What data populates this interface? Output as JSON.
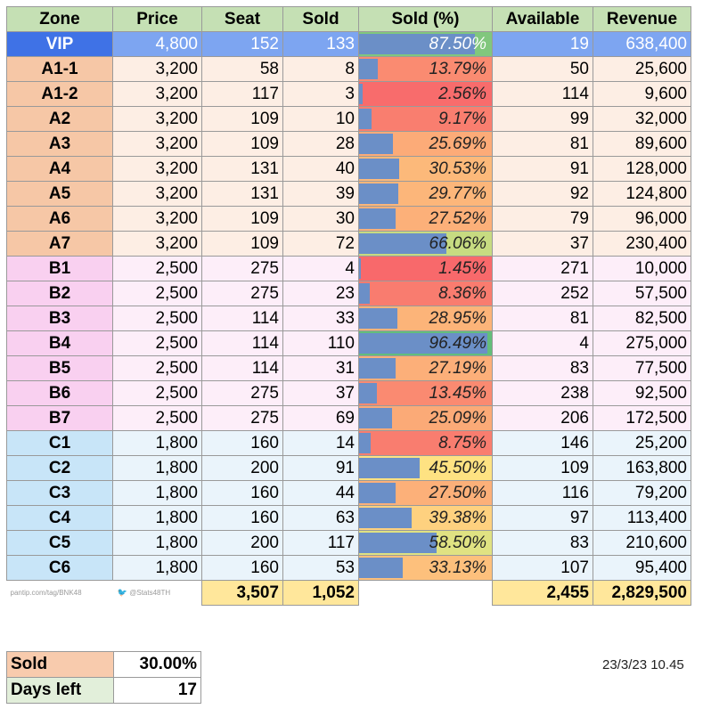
{
  "headers": [
    "Zone",
    "Price",
    "Seat",
    "Sold",
    "Sold (%)",
    "Available",
    "Revenue"
  ],
  "rows": [
    {
      "zone": "VIP",
      "price": "4,800",
      "seat": "152",
      "sold": "133",
      "pct": "87.50%",
      "pct_value": 87.5,
      "available": "19",
      "revenue": "638,400",
      "group": "vip"
    },
    {
      "zone": "A1-1",
      "price": "3,200",
      "seat": "58",
      "sold": "8",
      "pct": "13.79%",
      "pct_value": 13.79,
      "available": "50",
      "revenue": "25,600",
      "group": "A"
    },
    {
      "zone": "A1-2",
      "price": "3,200",
      "seat": "117",
      "sold": "3",
      "pct": "2.56%",
      "pct_value": 2.56,
      "available": "114",
      "revenue": "9,600",
      "group": "A"
    },
    {
      "zone": "A2",
      "price": "3,200",
      "seat": "109",
      "sold": "10",
      "pct": "9.17%",
      "pct_value": 9.17,
      "available": "99",
      "revenue": "32,000",
      "group": "A"
    },
    {
      "zone": "A3",
      "price": "3,200",
      "seat": "109",
      "sold": "28",
      "pct": "25.69%",
      "pct_value": 25.69,
      "available": "81",
      "revenue": "89,600",
      "group": "A"
    },
    {
      "zone": "A4",
      "price": "3,200",
      "seat": "131",
      "sold": "40",
      "pct": "30.53%",
      "pct_value": 30.53,
      "available": "91",
      "revenue": "128,000",
      "group": "A"
    },
    {
      "zone": "A5",
      "price": "3,200",
      "seat": "131",
      "sold": "39",
      "pct": "29.77%",
      "pct_value": 29.77,
      "available": "92",
      "revenue": "124,800",
      "group": "A"
    },
    {
      "zone": "A6",
      "price": "3,200",
      "seat": "109",
      "sold": "30",
      "pct": "27.52%",
      "pct_value": 27.52,
      "available": "79",
      "revenue": "96,000",
      "group": "A"
    },
    {
      "zone": "A7",
      "price": "3,200",
      "seat": "109",
      "sold": "72",
      "pct": "66.06%",
      "pct_value": 66.06,
      "available": "37",
      "revenue": "230,400",
      "group": "A"
    },
    {
      "zone": "B1",
      "price": "2,500",
      "seat": "275",
      "sold": "4",
      "pct": "1.45%",
      "pct_value": 1.45,
      "available": "271",
      "revenue": "10,000",
      "group": "B"
    },
    {
      "zone": "B2",
      "price": "2,500",
      "seat": "275",
      "sold": "23",
      "pct": "8.36%",
      "pct_value": 8.36,
      "available": "252",
      "revenue": "57,500",
      "group": "B"
    },
    {
      "zone": "B3",
      "price": "2,500",
      "seat": "114",
      "sold": "33",
      "pct": "28.95%",
      "pct_value": 28.95,
      "available": "81",
      "revenue": "82,500",
      "group": "B"
    },
    {
      "zone": "B4",
      "price": "2,500",
      "seat": "114",
      "sold": "110",
      "pct": "96.49%",
      "pct_value": 96.49,
      "available": "4",
      "revenue": "275,000",
      "group": "B"
    },
    {
      "zone": "B5",
      "price": "2,500",
      "seat": "114",
      "sold": "31",
      "pct": "27.19%",
      "pct_value": 27.19,
      "available": "83",
      "revenue": "77,500",
      "group": "B"
    },
    {
      "zone": "B6",
      "price": "2,500",
      "seat": "275",
      "sold": "37",
      "pct": "13.45%",
      "pct_value": 13.45,
      "available": "238",
      "revenue": "92,500",
      "group": "B"
    },
    {
      "zone": "B7",
      "price": "2,500",
      "seat": "275",
      "sold": "69",
      "pct": "25.09%",
      "pct_value": 25.09,
      "available": "206",
      "revenue": "172,500",
      "group": "B"
    },
    {
      "zone": "C1",
      "price": "1,800",
      "seat": "160",
      "sold": "14",
      "pct": "8.75%",
      "pct_value": 8.75,
      "available": "146",
      "revenue": "25,200",
      "group": "C"
    },
    {
      "zone": "C2",
      "price": "1,800",
      "seat": "200",
      "sold": "91",
      "pct": "45.50%",
      "pct_value": 45.5,
      "available": "109",
      "revenue": "163,800",
      "group": "C"
    },
    {
      "zone": "C3",
      "price": "1,800",
      "seat": "160",
      "sold": "44",
      "pct": "27.50%",
      "pct_value": 27.5,
      "available": "116",
      "revenue": "79,200",
      "group": "C"
    },
    {
      "zone": "C4",
      "price": "1,800",
      "seat": "160",
      "sold": "63",
      "pct": "39.38%",
      "pct_value": 39.38,
      "available": "97",
      "revenue": "113,400",
      "group": "C"
    },
    {
      "zone": "C5",
      "price": "1,800",
      "seat": "200",
      "sold": "117",
      "pct": "58.50%",
      "pct_value": 58.5,
      "available": "83",
      "revenue": "210,600",
      "group": "C"
    },
    {
      "zone": "C6",
      "price": "1,800",
      "seat": "160",
      "sold": "53",
      "pct": "33.13%",
      "pct_value": 33.13,
      "available": "107",
      "revenue": "95,400",
      "group": "C"
    }
  ],
  "totals": {
    "seat": "3,507",
    "sold": "1,052",
    "available": "2,455",
    "revenue": "2,829,500"
  },
  "credits": {
    "pantip": "pantip.com/tag/BNK48",
    "twitter": "@Stats48TH"
  },
  "summary": {
    "sold_label": "Sold",
    "sold_value": "30.00%",
    "days_label": "Days left",
    "days_value": "17"
  },
  "timestamp": "23/3/23 10.45",
  "colors": {
    "header": "#c5e0b4",
    "bar": "#6b8fc7",
    "total": "#ffe79b",
    "vip_zone": "#3f72e6",
    "vip_row": "#7da5f1",
    "zone_A": "#f6c7a6",
    "row_A": "#fdeee4",
    "zone_B": "#f9d0f0",
    "row_B": "#fdeef9",
    "zone_C": "#c8e5f8",
    "row_C": "#eaf4fb",
    "scale_low": "#f8696b",
    "scale_mid": "#ffeb84",
    "scale_high": "#63be7b",
    "summary_sold": "#f8cbad",
    "summary_days": "#e2efda"
  }
}
